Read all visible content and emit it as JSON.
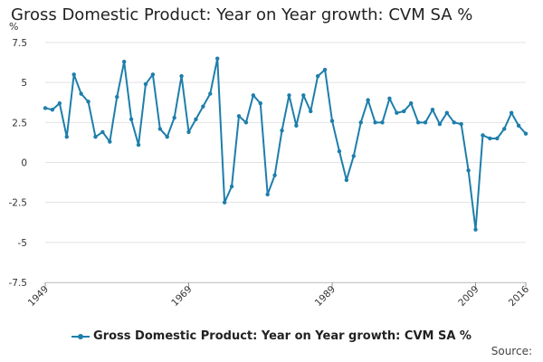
{
  "chart_data": {
    "type": "line",
    "title": "Gross Domestic Product: Year on Year growth: CVM SA %",
    "ylabel": "%",
    "xlabel": "",
    "ylim": [
      -7.5,
      7.5
    ],
    "y_ticks": [
      "7.5",
      "5",
      "2.5",
      "0",
      "-2.5",
      "-5",
      "-7.5"
    ],
    "y_tick_values": [
      7.5,
      5,
      2.5,
      0,
      -2.5,
      -5,
      -7.5
    ],
    "x_tick_labels": [
      "1949",
      "1969",
      "1989",
      "2009",
      "2016"
    ],
    "x_tick_years": [
      1949,
      1969,
      1989,
      2009,
      2016
    ],
    "xlim": [
      1949,
      2016
    ],
    "grid": true,
    "legend_position": "bottom",
    "series": [
      {
        "name": "Gross Domestic Product: Year on Year growth: CVM SA %",
        "color": "#1e7eab",
        "x": [
          1949,
          1950,
          1951,
          1952,
          1953,
          1954,
          1955,
          1956,
          1957,
          1958,
          1959,
          1960,
          1961,
          1962,
          1963,
          1964,
          1965,
          1966,
          1967,
          1968,
          1969,
          1970,
          1971,
          1972,
          1973,
          1974,
          1975,
          1976,
          1977,
          1978,
          1979,
          1980,
          1981,
          1982,
          1983,
          1984,
          1985,
          1986,
          1987,
          1988,
          1989,
          1990,
          1991,
          1992,
          1993,
          1994,
          1995,
          1996,
          1997,
          1998,
          1999,
          2000,
          2001,
          2002,
          2003,
          2004,
          2005,
          2006,
          2007,
          2008,
          2009,
          2010,
          2011,
          2012,
          2013,
          2014,
          2015,
          2016
        ],
        "values": [
          3.4,
          3.3,
          3.7,
          1.6,
          5.5,
          4.3,
          3.8,
          1.6,
          1.9,
          1.3,
          4.1,
          6.3,
          2.7,
          1.1,
          4.9,
          5.5,
          2.1,
          1.6,
          2.8,
          5.4,
          1.9,
          2.7,
          3.5,
          4.3,
          6.5,
          -2.5,
          -1.5,
          2.9,
          2.5,
          4.2,
          3.7,
          -2.0,
          -0.8,
          2.0,
          4.2,
          2.3,
          4.2,
          3.2,
          5.4,
          5.8,
          2.6,
          0.7,
          -1.1,
          0.4,
          2.5,
          3.9,
          2.5,
          2.5,
          4.0,
          3.1,
          3.2,
          3.7,
          2.5,
          2.5,
          3.3,
          2.4,
          3.1,
          2.5,
          2.4,
          -0.5,
          -4.2,
          1.7,
          1.5,
          1.5,
          2.1,
          3.1,
          2.3,
          1.8
        ]
      }
    ]
  },
  "legend": {
    "label": "Gross Domestic Product: Year on Year growth: CVM SA %"
  },
  "source": {
    "label": "Source:"
  }
}
